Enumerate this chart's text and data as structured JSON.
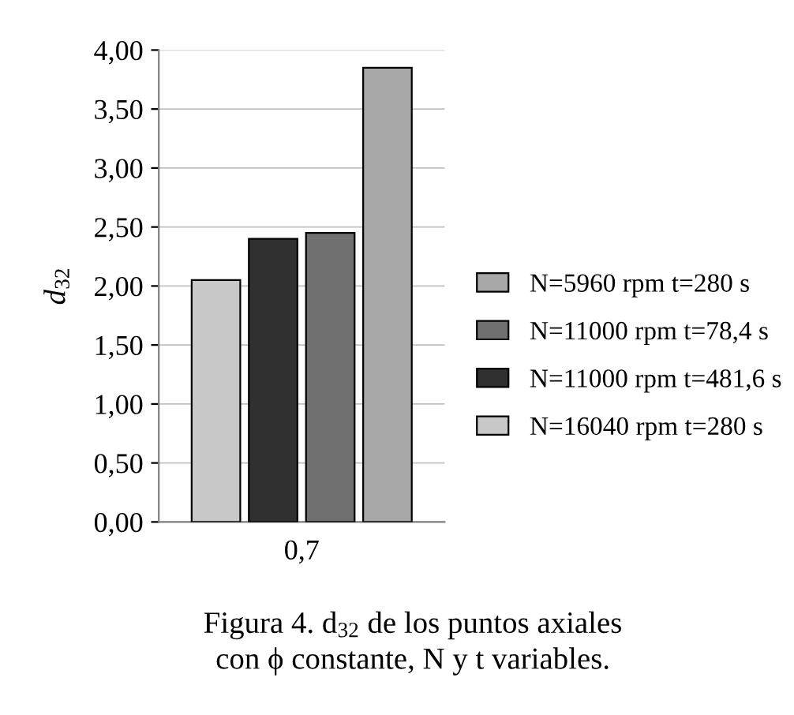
{
  "chart_data": {
    "type": "bar",
    "ylabel": "d$_{32}$",
    "categories": [
      "0,7"
    ],
    "series": [
      {
        "name": "N=16040 rpm t=280 s",
        "color": "#c8c8c8",
        "values": [
          2.05
        ]
      },
      {
        "name": "N=11000 rpm t=481,6 s",
        "color": "#303030",
        "values": [
          2.4
        ]
      },
      {
        "name": "N=11000 rpm t=78,4 s",
        "color": "#707070",
        "values": [
          2.45
        ]
      },
      {
        "name": "N=5960 rpm t=280 s",
        "color": "#a8a8a8",
        "values": [
          3.85
        ]
      }
    ],
    "ylim": [
      0,
      4
    ],
    "yticks": [
      {
        "value": 0,
        "label": "0,00"
      },
      {
        "value": 0.5,
        "label": "0,50"
      },
      {
        "value": 1,
        "label": "1,00"
      },
      {
        "value": 1.5,
        "label": "1,50"
      },
      {
        "value": 2,
        "label": "2,00"
      },
      {
        "value": 2.5,
        "label": "2,50"
      },
      {
        "value": 3,
        "label": "3,00"
      },
      {
        "value": 3.5,
        "label": "3,50"
      },
      {
        "value": 4,
        "label": "4,00"
      }
    ],
    "grid": "y",
    "legend": "right",
    "annotations": [
      "Figura 4. d$_{32}$ de los puntos axiales",
      "con ϕ constante, N y t variables."
    ]
  }
}
